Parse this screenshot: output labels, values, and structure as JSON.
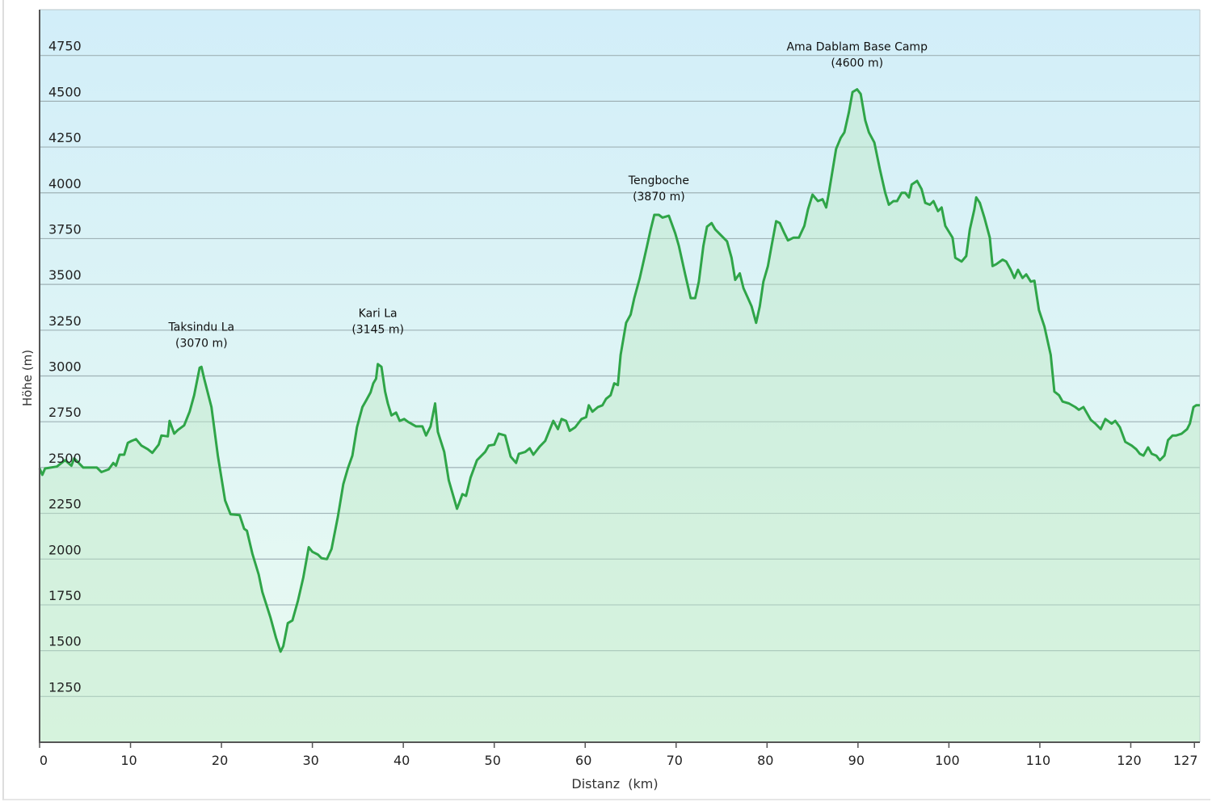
{
  "chart_data": {
    "type": "area",
    "title": "",
    "xlabel": "Distanz  (km)",
    "ylabel": "Höhe (m)",
    "xlim": [
      0,
      127.6
    ],
    "ylim": [
      1000,
      5000
    ],
    "grid": true,
    "x_ticks": [
      "0",
      "10",
      "20",
      "30",
      "40",
      "50",
      "60",
      "70",
      "80",
      "90",
      "100",
      "110",
      "120",
      "127"
    ],
    "x_tick_values": [
      0,
      10,
      20,
      30,
      40,
      50,
      60,
      70,
      80,
      90,
      100,
      110,
      120,
      127
    ],
    "y_ticks": [
      "1250",
      "1500",
      "1750",
      "2000",
      "2250",
      "2500",
      "2750",
      "3000",
      "3250",
      "3500",
      "3750",
      "4000",
      "4250",
      "4500",
      "4750"
    ],
    "y_tick_values": [
      1250,
      1500,
      1750,
      2000,
      2250,
      2500,
      2750,
      3000,
      3250,
      3500,
      3750,
      4000,
      4250,
      4500,
      4750
    ],
    "colors": {
      "line": "#2fa548",
      "fill": "#bfe8c6",
      "bg_top": "#d2eef9",
      "bg_bottom": "#eafbf1",
      "grid": "#9fb2b6"
    },
    "annotations": [
      {
        "name": "Taksindu La",
        "label": "(3070 m)",
        "x": 17.8,
        "y": 3070
      },
      {
        "name": "Kari  La",
        "label": "(3145 m)",
        "x": 37.2,
        "y": 3145
      },
      {
        "name": "Tengboche",
        "label": "(3870 m)",
        "x": 68.1,
        "y": 3870
      },
      {
        "name": "Ama Dablam Base Camp",
        "label": "(4600 m)",
        "x": 89.9,
        "y": 4600
      }
    ],
    "series": [
      {
        "name": "Höhe",
        "points": [
          [
            0,
            2495
          ],
          [
            0.3,
            2460
          ],
          [
            0.6,
            2495
          ],
          [
            1.9,
            2505
          ],
          [
            2.8,
            2540
          ],
          [
            3.5,
            2510
          ],
          [
            3.8,
            2550
          ],
          [
            4.4,
            2520
          ],
          [
            4.8,
            2500
          ],
          [
            6.3,
            2500
          ],
          [
            6.8,
            2475
          ],
          [
            7.6,
            2490
          ],
          [
            8.1,
            2525
          ],
          [
            8.4,
            2510
          ],
          [
            8.8,
            2570
          ],
          [
            9.3,
            2570
          ],
          [
            9.7,
            2635
          ],
          [
            10.1,
            2645
          ],
          [
            10.6,
            2655
          ],
          [
            11.2,
            2620
          ],
          [
            11.9,
            2600
          ],
          [
            12.4,
            2580
          ],
          [
            13.1,
            2625
          ],
          [
            13.4,
            2675
          ],
          [
            14.1,
            2670
          ],
          [
            14.3,
            2755
          ],
          [
            14.8,
            2685
          ],
          [
            15.2,
            2705
          ],
          [
            15.9,
            2730
          ],
          [
            16.5,
            2805
          ],
          [
            17.0,
            2895
          ],
          [
            17.6,
            3045
          ],
          [
            17.8,
            3050
          ],
          [
            18.1,
            2985
          ],
          [
            18.9,
            2830
          ],
          [
            19.6,
            2565
          ],
          [
            20.4,
            2320
          ],
          [
            21.0,
            2245
          ],
          [
            22.0,
            2240
          ],
          [
            22.5,
            2165
          ],
          [
            22.8,
            2155
          ],
          [
            23.4,
            2030
          ],
          [
            24.1,
            1915
          ],
          [
            24.5,
            1820
          ],
          [
            25.4,
            1680
          ],
          [
            26.0,
            1570
          ],
          [
            26.5,
            1495
          ],
          [
            26.8,
            1525
          ],
          [
            27.3,
            1650
          ],
          [
            27.8,
            1665
          ],
          [
            28.4,
            1770
          ],
          [
            29.0,
            1900
          ],
          [
            29.6,
            2065
          ],
          [
            30.0,
            2040
          ],
          [
            30.6,
            2025
          ],
          [
            31.0,
            2005
          ],
          [
            31.6,
            2000
          ],
          [
            32.1,
            2055
          ],
          [
            32.8,
            2230
          ],
          [
            33.4,
            2410
          ],
          [
            33.9,
            2495
          ],
          [
            34.4,
            2565
          ],
          [
            34.9,
            2720
          ],
          [
            35.5,
            2830
          ],
          [
            35.9,
            2865
          ],
          [
            36.4,
            2910
          ],
          [
            36.7,
            2960
          ],
          [
            37.0,
            2985
          ],
          [
            37.2,
            3065
          ],
          [
            37.6,
            3050
          ],
          [
            38.0,
            2915
          ],
          [
            38.3,
            2850
          ],
          [
            38.7,
            2785
          ],
          [
            39.2,
            2800
          ],
          [
            39.6,
            2755
          ],
          [
            40.1,
            2765
          ],
          [
            40.5,
            2750
          ],
          [
            41.4,
            2725
          ],
          [
            42.1,
            2725
          ],
          [
            42.5,
            2675
          ],
          [
            43.0,
            2725
          ],
          [
            43.5,
            2850
          ],
          [
            43.8,
            2695
          ],
          [
            44.5,
            2585
          ],
          [
            45.0,
            2430
          ],
          [
            45.9,
            2275
          ],
          [
            46.1,
            2300
          ],
          [
            46.5,
            2355
          ],
          [
            46.9,
            2345
          ],
          [
            47.4,
            2445
          ],
          [
            48.1,
            2540
          ],
          [
            49.0,
            2585
          ],
          [
            49.4,
            2620
          ],
          [
            50.0,
            2625
          ],
          [
            50.5,
            2685
          ],
          [
            51.2,
            2675
          ],
          [
            51.8,
            2560
          ],
          [
            52.4,
            2525
          ],
          [
            52.7,
            2575
          ],
          [
            53.4,
            2585
          ],
          [
            53.9,
            2605
          ],
          [
            54.3,
            2570
          ],
          [
            55.0,
            2615
          ],
          [
            55.6,
            2645
          ],
          [
            56.5,
            2755
          ],
          [
            57.0,
            2710
          ],
          [
            57.4,
            2765
          ],
          [
            57.9,
            2755
          ],
          [
            58.3,
            2700
          ],
          [
            58.9,
            2720
          ],
          [
            59.6,
            2765
          ],
          [
            60.1,
            2775
          ],
          [
            60.4,
            2840
          ],
          [
            60.8,
            2805
          ],
          [
            61.4,
            2830
          ],
          [
            61.9,
            2840
          ],
          [
            62.3,
            2875
          ],
          [
            62.8,
            2895
          ],
          [
            63.2,
            2960
          ],
          [
            63.6,
            2950
          ],
          [
            63.9,
            3115
          ],
          [
            64.5,
            3290
          ],
          [
            65.0,
            3335
          ],
          [
            65.4,
            3425
          ],
          [
            66.0,
            3535
          ],
          [
            66.8,
            3710
          ],
          [
            67.2,
            3800
          ],
          [
            67.6,
            3880
          ],
          [
            68.1,
            3880
          ],
          [
            68.5,
            3865
          ],
          [
            69.2,
            3875
          ],
          [
            69.9,
            3780
          ],
          [
            70.3,
            3710
          ],
          [
            71.0,
            3555
          ],
          [
            71.6,
            3425
          ],
          [
            72.1,
            3425
          ],
          [
            72.5,
            3515
          ],
          [
            73.0,
            3710
          ],
          [
            73.4,
            3815
          ],
          [
            73.9,
            3835
          ],
          [
            74.3,
            3800
          ],
          [
            75.2,
            3755
          ],
          [
            75.6,
            3735
          ],
          [
            76.1,
            3645
          ],
          [
            76.5,
            3525
          ],
          [
            77.0,
            3560
          ],
          [
            77.4,
            3480
          ],
          [
            77.9,
            3425
          ],
          [
            78.3,
            3380
          ],
          [
            78.8,
            3290
          ],
          [
            79.2,
            3380
          ],
          [
            79.6,
            3515
          ],
          [
            80.1,
            3600
          ],
          [
            80.5,
            3710
          ],
          [
            81.0,
            3845
          ],
          [
            81.4,
            3835
          ],
          [
            81.9,
            3780
          ],
          [
            82.3,
            3740
          ],
          [
            82.9,
            3755
          ],
          [
            83.5,
            3755
          ],
          [
            84.1,
            3820
          ],
          [
            84.5,
            3910
          ],
          [
            85.0,
            3990
          ],
          [
            85.6,
            3955
          ],
          [
            86.1,
            3965
          ],
          [
            86.5,
            3920
          ],
          [
            86.8,
            4000
          ],
          [
            87.2,
            4120
          ],
          [
            87.6,
            4240
          ],
          [
            88.1,
            4300
          ],
          [
            88.5,
            4330
          ],
          [
            89.0,
            4440
          ],
          [
            89.4,
            4550
          ],
          [
            89.9,
            4565
          ],
          [
            90.3,
            4540
          ],
          [
            90.8,
            4395
          ],
          [
            91.2,
            4330
          ],
          [
            91.8,
            4275
          ],
          [
            92.4,
            4130
          ],
          [
            93.0,
            4000
          ],
          [
            93.4,
            3935
          ],
          [
            93.9,
            3955
          ],
          [
            94.3,
            3955
          ],
          [
            94.8,
            4000
          ],
          [
            95.2,
            4000
          ],
          [
            95.6,
            3975
          ],
          [
            95.9,
            4045
          ],
          [
            96.5,
            4065
          ],
          [
            97.0,
            4020
          ],
          [
            97.4,
            3945
          ],
          [
            97.9,
            3935
          ],
          [
            98.3,
            3955
          ],
          [
            98.8,
            3900
          ],
          [
            99.2,
            3920
          ],
          [
            99.6,
            3820
          ],
          [
            100.4,
            3755
          ],
          [
            100.7,
            3645
          ],
          [
            101.4,
            3625
          ],
          [
            101.9,
            3655
          ],
          [
            102.3,
            3800
          ],
          [
            102.8,
            3910
          ],
          [
            103.0,
            3975
          ],
          [
            103.4,
            3945
          ],
          [
            103.9,
            3865
          ],
          [
            104.5,
            3755
          ],
          [
            104.8,
            3600
          ],
          [
            105.2,
            3610
          ],
          [
            105.9,
            3635
          ],
          [
            106.3,
            3625
          ],
          [
            106.8,
            3580
          ],
          [
            107.2,
            3535
          ],
          [
            107.6,
            3580
          ],
          [
            108.1,
            3535
          ],
          [
            108.5,
            3555
          ],
          [
            109.0,
            3515
          ],
          [
            109.4,
            3520
          ],
          [
            109.9,
            3360
          ],
          [
            110.5,
            3270
          ],
          [
            111.2,
            3115
          ],
          [
            111.6,
            2915
          ],
          [
            112.1,
            2895
          ],
          [
            112.5,
            2860
          ],
          [
            113.2,
            2850
          ],
          [
            113.9,
            2830
          ],
          [
            114.3,
            2815
          ],
          [
            114.8,
            2830
          ],
          [
            115.2,
            2795
          ],
          [
            115.6,
            2760
          ],
          [
            116.1,
            2740
          ],
          [
            116.7,
            2710
          ],
          [
            117.2,
            2765
          ],
          [
            117.9,
            2740
          ],
          [
            118.3,
            2755
          ],
          [
            118.8,
            2720
          ],
          [
            119.4,
            2640
          ],
          [
            120.1,
            2620
          ],
          [
            120.6,
            2600
          ],
          [
            121.0,
            2575
          ],
          [
            121.4,
            2565
          ],
          [
            121.9,
            2610
          ],
          [
            122.3,
            2575
          ],
          [
            122.8,
            2565
          ],
          [
            123.2,
            2540
          ],
          [
            123.7,
            2565
          ],
          [
            124.1,
            2650
          ],
          [
            124.6,
            2675
          ],
          [
            125.0,
            2675
          ],
          [
            125.6,
            2685
          ],
          [
            126.2,
            2710
          ],
          [
            126.5,
            2740
          ],
          [
            126.9,
            2830
          ],
          [
            127.2,
            2840
          ],
          [
            127.6,
            2840
          ]
        ]
      }
    ]
  }
}
